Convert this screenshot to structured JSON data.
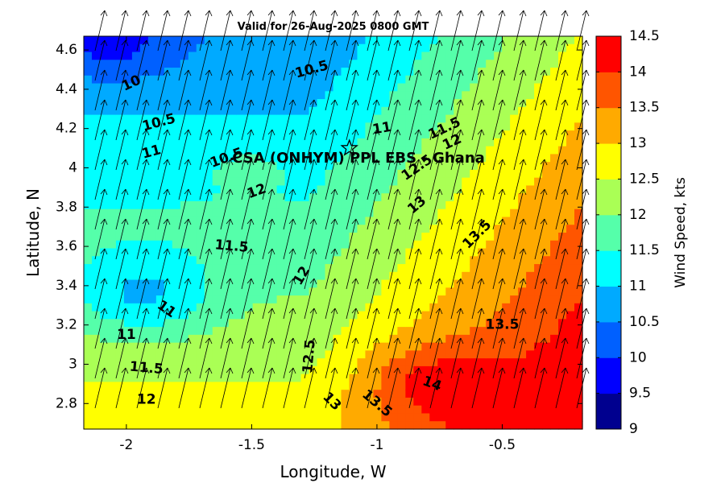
{
  "chart_data": {
    "type": "heatmap",
    "title": "Valid for 26-Aug-2025 0800 GMT",
    "xlabel": "Longitude, W",
    "ylabel": "Latitude, N",
    "xlim": [
      -2.17,
      -0.18
    ],
    "ylim": [
      2.67,
      4.67
    ],
    "xticks": [
      -2,
      -1.5,
      -1,
      -0.5
    ],
    "yticks": [
      2.8,
      3,
      3.2,
      3.4,
      3.6,
      3.8,
      4,
      4.2,
      4.4,
      4.6
    ],
    "colorbar": {
      "label": "Wind Speed, kts",
      "levels": [
        9,
        9.5,
        10,
        10.5,
        11,
        11.5,
        12,
        12.5,
        13,
        13.5,
        14,
        14.5
      ],
      "colors": [
        "#00008f",
        "#0000ff",
        "#0060ff",
        "#00aaff",
        "#00ffff",
        "#55ffaa",
        "#aaff55",
        "#ffff00",
        "#ffaa00",
        "#ff5500",
        "#ff0000"
      ]
    },
    "site": {
      "name": "CSA (ONHYM) PPL EBS - Ghana",
      "lon": -1.11,
      "lat": 4.1,
      "marker": "star"
    },
    "arrow_direction": "toward north-northeast",
    "contour_labels": [
      {
        "text": "10",
        "lon": -1.98,
        "lat": 4.43,
        "rot": -25
      },
      {
        "text": "10.5",
        "lon": -1.87,
        "lat": 4.23,
        "rot": -15
      },
      {
        "text": "10.5",
        "lon": -1.26,
        "lat": 4.5,
        "rot": -15
      },
      {
        "text": "11",
        "lon": -1.9,
        "lat": 4.08,
        "rot": -15
      },
      {
        "text": "11",
        "lon": -0.98,
        "lat": 4.2,
        "rot": -10
      },
      {
        "text": "11.5",
        "lon": -0.73,
        "lat": 4.2,
        "rot": -25
      },
      {
        "text": "12",
        "lon": -0.7,
        "lat": 4.13,
        "rot": -25
      },
      {
        "text": "10.5",
        "lon": -1.6,
        "lat": 4.05,
        "rot": -20
      },
      {
        "text": "12",
        "lon": -1.48,
        "lat": 3.88,
        "rot": -20
      },
      {
        "text": "12.5",
        "lon": -0.84,
        "lat": 4.0,
        "rot": -35
      },
      {
        "text": "13",
        "lon": -0.84,
        "lat": 3.81,
        "rot": -40
      },
      {
        "text": "13.5",
        "lon": -0.6,
        "lat": 3.66,
        "rot": -45
      },
      {
        "text": "11.5",
        "lon": -1.58,
        "lat": 3.6,
        "rot": 5
      },
      {
        "text": "12",
        "lon": -1.3,
        "lat": 3.45,
        "rot": -60
      },
      {
        "text": "11",
        "lon": -1.84,
        "lat": 3.28,
        "rot": 35
      },
      {
        "text": "11",
        "lon": -2.0,
        "lat": 3.15,
        "rot": 0
      },
      {
        "text": "11.5",
        "lon": -1.92,
        "lat": 2.98,
        "rot": 5
      },
      {
        "text": "12",
        "lon": -1.92,
        "lat": 2.82,
        "rot": 0
      },
      {
        "text": "12.5",
        "lon": -1.27,
        "lat": 3.04,
        "rot": -85
      },
      {
        "text": "13",
        "lon": -1.18,
        "lat": 2.81,
        "rot": 45
      },
      {
        "text": "13.5",
        "lon": -1.0,
        "lat": 2.8,
        "rot": 40
      },
      {
        "text": "14",
        "lon": -0.78,
        "lat": 2.9,
        "rot": 20
      },
      {
        "text": "13.5",
        "lon": -0.5,
        "lat": 3.2,
        "rot": 0
      }
    ]
  }
}
